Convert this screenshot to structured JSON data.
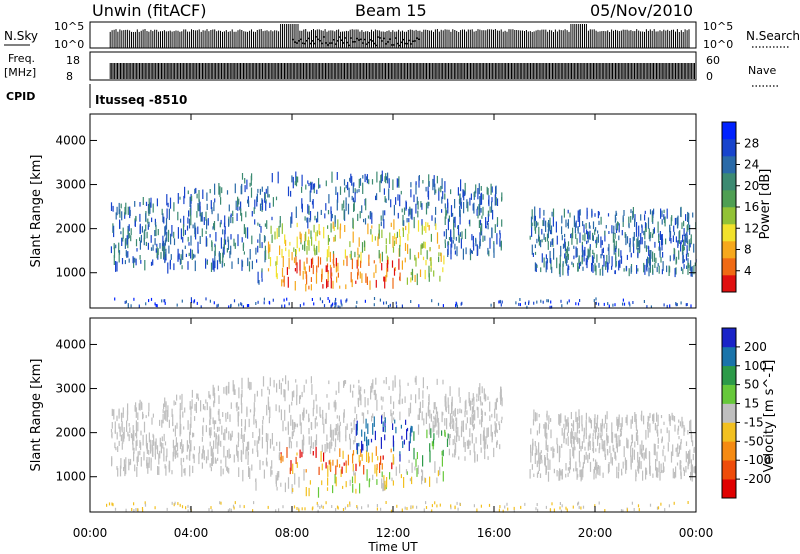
{
  "header": {
    "station": "Unwin (fitACF)",
    "beam": "Beam 15",
    "date": "05/Nov/2010"
  },
  "top_panels": {
    "nsky_label": "N.Sky",
    "nsky_ticks": [
      "10^5",
      "10^0"
    ],
    "nsearch_label": "N.Search",
    "nsearch_ticks": [
      "10^5",
      "10^0"
    ],
    "freq_label": "Freq.",
    "freq_unit": "[MHz]",
    "freq_ticks": [
      "18",
      "8"
    ],
    "nave_label": "Nave",
    "nave_ticks": [
      "60",
      "0"
    ],
    "cpid_label": "CPID",
    "cpid_value": "Itusseq -8510"
  },
  "chart_data": [
    {
      "type": "heatmap",
      "name": "power",
      "ylabel": "Slant Range [km]",
      "ylim": [
        200,
        4600
      ],
      "yticks": [
        "4000",
        "3000",
        "2000",
        "1000"
      ],
      "colorbar": {
        "label": "Power [dB]",
        "range": [
          0,
          32
        ],
        "ticks": [
          "28",
          "24",
          "20",
          "16",
          "12",
          "8",
          "4"
        ],
        "colors": [
          "#0022ff",
          "#1844cc",
          "#2a6aa8",
          "#3c8a72",
          "#4f9f53",
          "#92c236",
          "#f2e22c",
          "#f6a81c",
          "#f06a14",
          "#e01010"
        ]
      }
    },
    {
      "type": "heatmap",
      "name": "velocity",
      "ylabel": "Slant Range [km]",
      "ylim": [
        200,
        4600
      ],
      "yticks": [
        "4000",
        "3000",
        "2000",
        "1000"
      ],
      "colorbar": {
        "label": "Velocity [m s^-1]",
        "ticks": [
          "200",
          "100",
          "50",
          "15",
          "-15",
          "-50",
          "-100",
          "-200"
        ],
        "colors": [
          "#1a24c8",
          "#1a74aa",
          "#2c9a48",
          "#66c83a",
          "#bfbfbf",
          "#f2c020",
          "#f58a12",
          "#ee4c0a",
          "#e00000"
        ]
      }
    }
  ],
  "xaxis": {
    "label": "Time UT",
    "ticks": [
      "00:00",
      "04:00",
      "08:00",
      "12:00",
      "16:00",
      "20:00",
      "00:00"
    ]
  }
}
